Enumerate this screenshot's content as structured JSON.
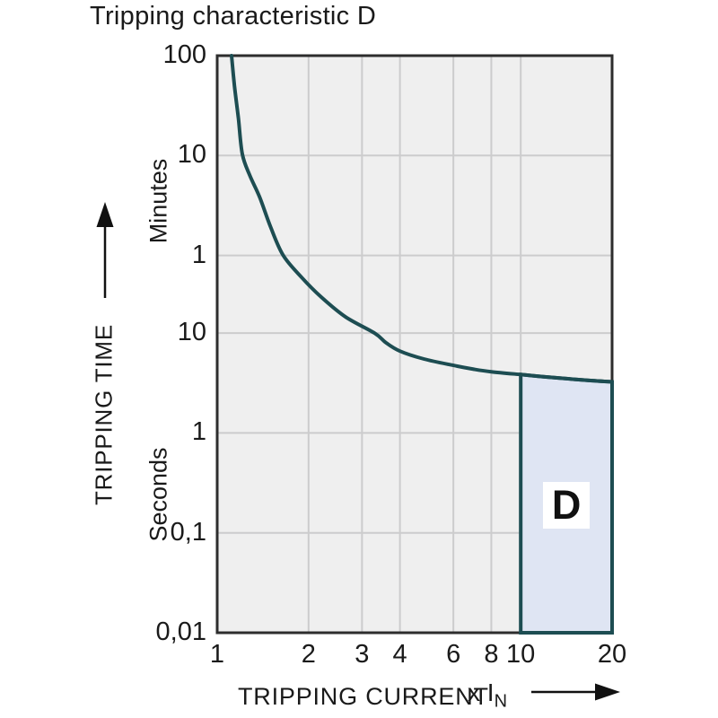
{
  "title": "Tripping characteristic D",
  "colors": {
    "curve": "#1d4d52",
    "region_fill": "#dfe5f3",
    "region_border": "#1d4d52",
    "plot_background": "#efefef",
    "gridline": "#cccccd",
    "plot_border": "#2d2d2d",
    "text": "#1a1a1a",
    "arrow": "#111111"
  },
  "chart_data": {
    "type": "line",
    "title": "Tripping characteristic D",
    "grid": "on",
    "x_axis": {
      "label": "TRIPPING CURRENT",
      "unit_prefix": "x I",
      "unit_subscript": "N",
      "scale": "log",
      "range": [
        1,
        20
      ],
      "tick_values": [
        1,
        2,
        3,
        4,
        6,
        8,
        10,
        20
      ],
      "tick_labels": [
        "1",
        "2",
        "3",
        "4",
        "6",
        "8",
        "10",
        "20"
      ],
      "grid_values": [
        2,
        3,
        4,
        6,
        8,
        10
      ]
    },
    "y_axis": {
      "label": "TRIPPING TIME",
      "scale": "log",
      "unit_upper": "Minutes",
      "unit_lower": "Seconds",
      "range_seconds": [
        0.01,
        6000
      ],
      "ticks": [
        {
          "label": "100",
          "seconds": 6000,
          "unit": "minutes"
        },
        {
          "label": "10",
          "seconds": 600,
          "unit": "minutes"
        },
        {
          "label": "1",
          "seconds": 60,
          "unit": "minutes"
        },
        {
          "label": "10",
          "seconds": 10,
          "unit": "seconds"
        },
        {
          "label": "1",
          "seconds": 1,
          "unit": "seconds"
        },
        {
          "label": "0,1",
          "seconds": 0.1,
          "unit": "seconds"
        },
        {
          "label": "0,01",
          "seconds": 0.01,
          "unit": "seconds"
        }
      ],
      "grid_seconds": [
        600,
        60,
        10,
        1,
        0.1
      ]
    },
    "curve": {
      "name": "tripping-time-curve",
      "points_current_vs_seconds": [
        [
          1.115,
          6000
        ],
        [
          1.14,
          3000
        ],
        [
          1.175,
          1400
        ],
        [
          1.21,
          620
        ],
        [
          1.28,
          380
        ],
        [
          1.38,
          230
        ],
        [
          1.5,
          115
        ],
        [
          1.65,
          60
        ],
        [
          1.9,
          36
        ],
        [
          2.2,
          23
        ],
        [
          2.65,
          14.5
        ],
        [
          3.3,
          10
        ],
        [
          3.6,
          8.0
        ],
        [
          4.0,
          6.6
        ],
        [
          4.8,
          5.5
        ],
        [
          6.0,
          4.75
        ],
        [
          7.0,
          4.35
        ],
        [
          8.0,
          4.1
        ],
        [
          10,
          3.85
        ],
        [
          12,
          3.65
        ],
        [
          15,
          3.45
        ],
        [
          17.5,
          3.33
        ],
        [
          20,
          3.25
        ]
      ]
    },
    "region": {
      "label": "D",
      "x_range": [
        10,
        20
      ],
      "bottom_seconds": 0.01
    }
  }
}
